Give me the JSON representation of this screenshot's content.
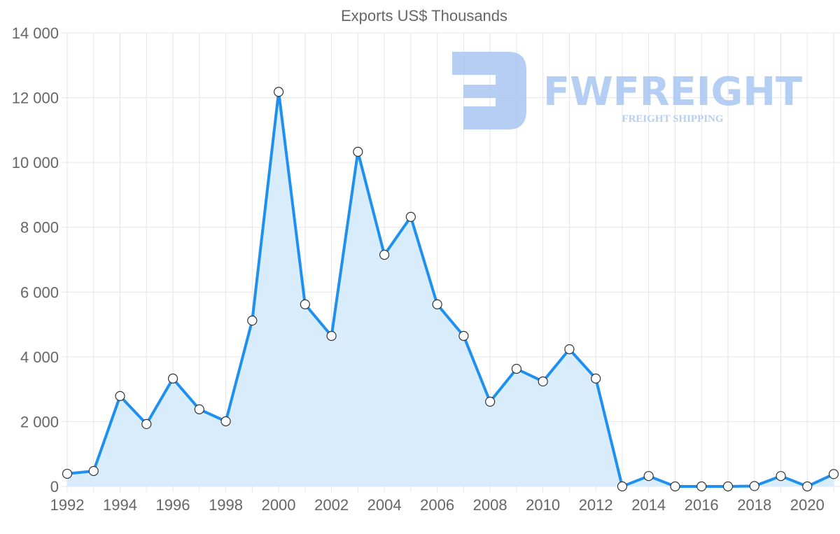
{
  "chart_data": {
    "type": "area",
    "title": "Exports US$ Thousands",
    "xlabel": "",
    "ylabel": "",
    "x": [
      1992,
      1993,
      1994,
      1995,
      1996,
      1997,
      1998,
      1999,
      2000,
      2001,
      2002,
      2003,
      2004,
      2005,
      2006,
      2007,
      2008,
      2009,
      2010,
      2011,
      2012,
      2013,
      2014,
      2015,
      2016,
      2017,
      2018,
      2019,
      2020,
      2021
    ],
    "series": [
      {
        "name": "Exports US$ Thousands",
        "values": [
          390,
          475,
          2790,
          1925,
          3330,
          2380,
          2010,
          5120,
          12180,
          5620,
          4645,
          10330,
          7150,
          8320,
          5620,
          4645,
          2615,
          3630,
          3240,
          4235,
          3330,
          0,
          320,
          0,
          0,
          0,
          10,
          320,
          0,
          380
        ]
      }
    ],
    "x_tick_labels": [
      "1992",
      "1994",
      "1996",
      "1998",
      "2000",
      "2002",
      "2004",
      "2006",
      "2008",
      "2010",
      "2012",
      "2014",
      "2016",
      "2018",
      "2020"
    ],
    "y_tick_labels": [
      "0",
      "2 000",
      "4 000",
      "6 000",
      "8 000",
      "10 000",
      "12 000",
      "14 000"
    ],
    "ylim": [
      0,
      14000
    ],
    "grid": true,
    "legend": "none",
    "colors": {
      "line": "#1e90f0",
      "fill": "#d7ebfb",
      "point_fill": "#ffffff",
      "point_stroke": "#333333"
    }
  },
  "watermark": {
    "brand": "FWFREIGHT",
    "tagline": "FREIGHT SHIPPING",
    "color": "#a9c6f2"
  }
}
